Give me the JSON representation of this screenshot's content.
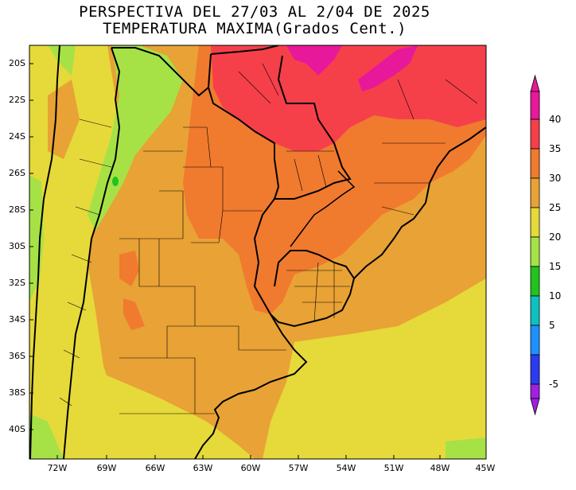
{
  "title": {
    "line1": "PERSPECTIVA DEL 27/03 AL 2/04 DE 2025",
    "line2": "TEMPERATURA MAXIMA(Grados Cent.)"
  },
  "map": {
    "lat_labels": [
      "20S",
      "22S",
      "24S",
      "26S",
      "28S",
      "30S",
      "32S",
      "34S",
      "36S",
      "38S",
      "40S"
    ],
    "lon_labels": [
      "72W",
      "69W",
      "66W",
      "63W",
      "60W",
      "57W",
      "54W",
      "51W",
      "48W",
      "45W"
    ],
    "region": "South America (Argentina, Chile, Paraguay, Uruguay, S Brazil, Bolivia)"
  },
  "colorbar": {
    "labels": [
      "40",
      "35",
      "30",
      "25",
      "20",
      "15",
      "10",
      "5",
      "-5"
    ],
    "colors": {
      "above_40": "#e8189a",
      "35_40": "#f5404a",
      "30_35": "#f07a2e",
      "25_30": "#e8a235",
      "20_25": "#e6d93a",
      "15_20": "#a6e246",
      "10_15": "#22c21f",
      "5_10": "#10c0c0",
      "0_5": "#1e90ff",
      "minus5_0": "#2b3bf0",
      "below_minus5": "#a020e0"
    }
  }
}
